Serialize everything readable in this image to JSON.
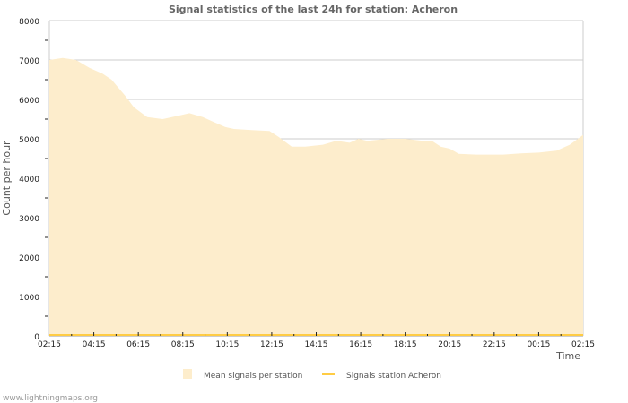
{
  "chart_data": {
    "type": "area",
    "title": "Signal statistics of the last 24h for station: Acheron",
    "xlabel": "Time",
    "ylabel": "Count per hour",
    "ylim": [
      0,
      8000
    ],
    "yticks": [
      "0",
      "1000",
      "2000",
      "3000",
      "4000",
      "5000",
      "6000",
      "7000",
      "8000"
    ],
    "xticks": [
      "02:15",
      "04:15",
      "06:15",
      "08:15",
      "10:15",
      "12:15",
      "14:15",
      "16:15",
      "18:15",
      "20:15",
      "22:15",
      "00:15",
      "02:15"
    ],
    "x_unit": "hours since 02:15",
    "xlim": [
      0,
      24
    ],
    "grid": true,
    "legend_position": "bottom",
    "series": [
      {
        "name": "Mean signals per station",
        "kind": "area",
        "color": "#fdedcc",
        "x": [
          0,
          0.6,
          1.2,
          1.8,
          2.4,
          2.8,
          3.4,
          3.8,
          4.4,
          5.1,
          5.9,
          6.3,
          6.9,
          7.3,
          7.9,
          8.3,
          9.1,
          9.9,
          10.3,
          10.9,
          11.5,
          12.3,
          12.9,
          13.5,
          13.9,
          14.3,
          15.2,
          16.0,
          16.8,
          17.2,
          17.6,
          18.0,
          18.4,
          19.2,
          20.4,
          21.2,
          22.0,
          22.8,
          23.4,
          24
        ],
        "values": [
          7000,
          7050,
          7000,
          6800,
          6650,
          6500,
          6100,
          5800,
          5550,
          5500,
          5600,
          5650,
          5550,
          5450,
          5300,
          5250,
          5220,
          5200,
          5050,
          4800,
          4800,
          4850,
          4950,
          4900,
          5000,
          4950,
          5000,
          5000,
          4950,
          4950,
          4800,
          4750,
          4620,
          4600,
          4600,
          4630,
          4650,
          4700,
          4850,
          5100
        ]
      },
      {
        "name": "Signals station Acheron",
        "kind": "line",
        "color": "#ffcc44",
        "x": [
          0,
          24
        ],
        "values": [
          0,
          0
        ]
      }
    ]
  },
  "footer": {
    "credit": "www.lightningmaps.org"
  }
}
